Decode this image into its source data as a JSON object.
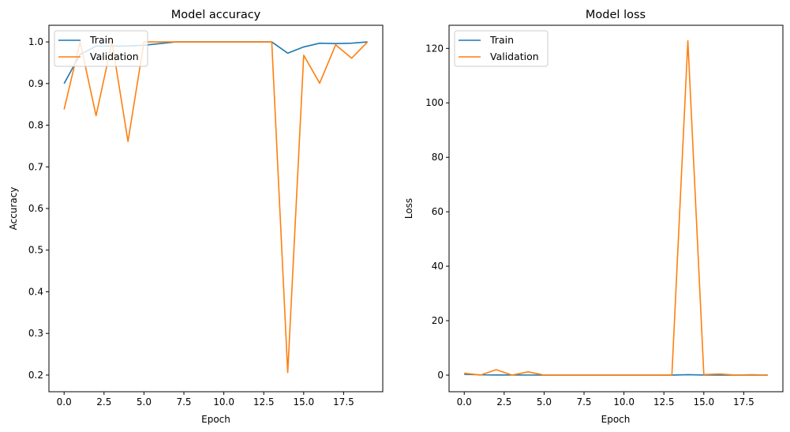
{
  "chart_data": [
    {
      "type": "line",
      "title": "Model accuracy",
      "xlabel": "Epoch",
      "ylabel": "Accuracy",
      "xlim": [
        -0.95,
        19.95
      ],
      "ylim": [
        0.16,
        1.04
      ],
      "xticks": [
        0.0,
        2.5,
        5.0,
        7.5,
        10.0,
        12.5,
        15.0,
        17.5
      ],
      "xtick_labels": [
        "0.0",
        "2.5",
        "5.0",
        "7.5",
        "10.0",
        "12.5",
        "15.0",
        "17.5"
      ],
      "yticks": [
        0.2,
        0.3,
        0.4,
        0.5,
        0.6,
        0.7,
        0.8,
        0.9,
        1.0
      ],
      "ytick_labels": [
        "0.2",
        "0.3",
        "0.4",
        "0.5",
        "0.6",
        "0.7",
        "0.8",
        "0.9",
        "1.0"
      ],
      "legend_position": "upper-left",
      "grid": false,
      "x": [
        0,
        1,
        2,
        3,
        4,
        5,
        6,
        7,
        8,
        9,
        10,
        11,
        12,
        13,
        14,
        15,
        16,
        17,
        18,
        19
      ],
      "series": [
        {
          "name": "Train",
          "color": "#1f77b4",
          "values": [
            0.9,
            0.97,
            0.99,
            0.99,
            0.99,
            0.992,
            0.996,
            1.0,
            1.0,
            1.0,
            1.0,
            1.0,
            1.0,
            1.0,
            0.973,
            0.988,
            0.997,
            0.996,
            0.997,
            1.0
          ]
        },
        {
          "name": "Validation",
          "color": "#ff7f0e",
          "values": [
            0.838,
            1.0,
            0.823,
            1.0,
            0.761,
            1.0,
            1.0,
            1.0,
            1.0,
            1.0,
            1.0,
            1.0,
            1.0,
            1.0,
            0.206,
            0.968,
            0.901,
            0.993,
            0.961,
            1.0
          ]
        }
      ]
    },
    {
      "type": "line",
      "title": "Model loss",
      "xlabel": "Epoch",
      "ylabel": "Loss",
      "xlim": [
        -0.95,
        19.95
      ],
      "ylim": [
        -6.1,
        128.5
      ],
      "xticks": [
        0.0,
        2.5,
        5.0,
        7.5,
        10.0,
        12.5,
        15.0,
        17.5
      ],
      "xtick_labels": [
        "0.0",
        "2.5",
        "5.0",
        "7.5",
        "10.0",
        "12.5",
        "15.0",
        "17.5"
      ],
      "yticks": [
        0,
        20,
        40,
        60,
        80,
        100,
        120
      ],
      "ytick_labels": [
        "0",
        "20",
        "40",
        "60",
        "80",
        "100",
        "120"
      ],
      "legend_position": "upper-left",
      "grid": false,
      "x": [
        0,
        1,
        2,
        3,
        4,
        5,
        6,
        7,
        8,
        9,
        10,
        11,
        12,
        13,
        14,
        15,
        16,
        17,
        18,
        19
      ],
      "series": [
        {
          "name": "Train",
          "color": "#1f77b4",
          "values": [
            0.3,
            0.1,
            0.05,
            0.04,
            0.03,
            0.02,
            0.01,
            0.0,
            0.0,
            0.0,
            0.0,
            0.0,
            0.0,
            0.0,
            0.15,
            0.05,
            0.02,
            0.02,
            0.02,
            0.0
          ]
        },
        {
          "name": "Validation",
          "color": "#ff7f0e",
          "values": [
            0.7,
            0.0,
            2.0,
            0.0,
            1.2,
            0.0,
            0.0,
            0.0,
            0.0,
            0.0,
            0.0,
            0.0,
            0.0,
            0.0,
            122.8,
            0.2,
            0.4,
            0.0,
            0.15,
            0.0
          ]
        }
      ]
    }
  ]
}
